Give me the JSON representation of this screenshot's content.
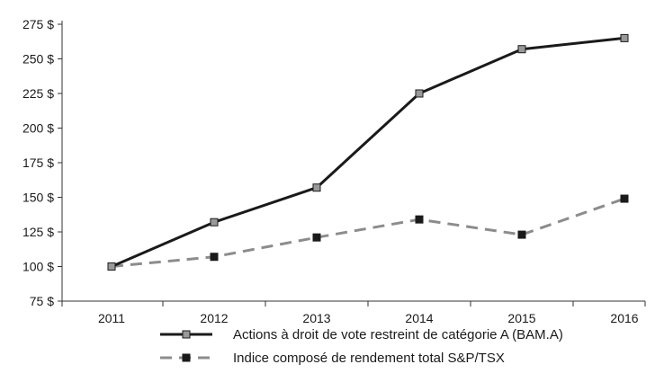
{
  "chart_data": {
    "type": "line",
    "title": "",
    "xlabel": "",
    "ylabel": "",
    "categories": [
      "2011",
      "2012",
      "2013",
      "2014",
      "2015",
      "2016"
    ],
    "ylim": [
      75,
      275
    ],
    "yticks": [
      75,
      100,
      125,
      150,
      175,
      200,
      225,
      250,
      275
    ],
    "ytick_labels": [
      "75 $",
      "100 $",
      "125 $",
      "150 $",
      "175 $",
      "200 $",
      "225 $",
      "250 $",
      "275 $"
    ],
    "grid": false,
    "legend_position": "bottom",
    "series": [
      {
        "name": "Actions à droit de vote restreint de catégorie A (BAM.A)",
        "values": [
          100,
          132,
          157,
          225,
          257,
          265
        ],
        "color": "#1a1a1a",
        "marker_color": "#999999",
        "line_style": "solid"
      },
      {
        "name": "Indice composé de rendement total S&P/TSX",
        "values": [
          100,
          107,
          121,
          134,
          123,
          149
        ],
        "color": "#8c8c8c",
        "marker_color": "#1a1a1a",
        "line_style": "dashed"
      }
    ]
  }
}
